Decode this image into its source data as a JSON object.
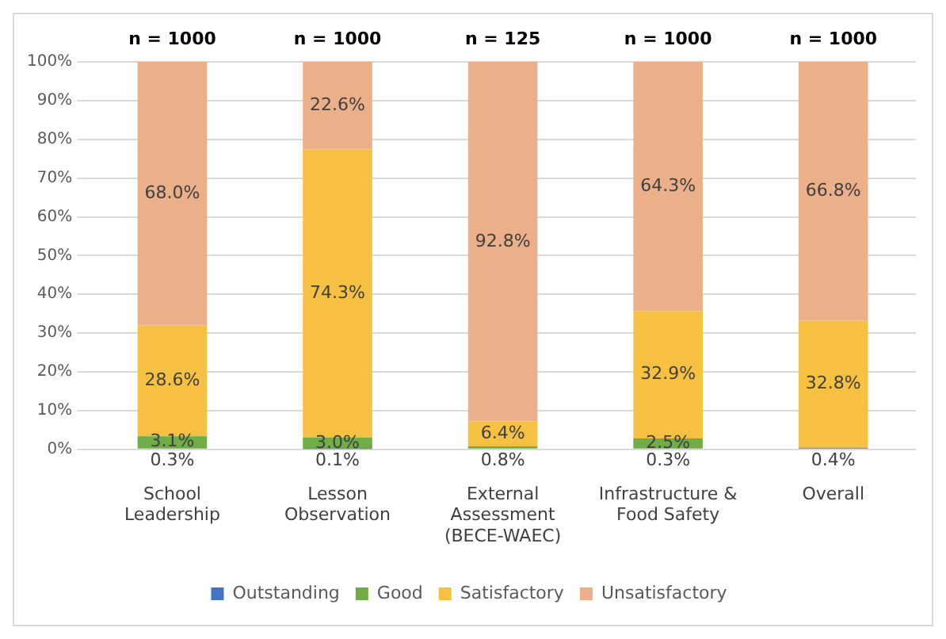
{
  "chart_data": {
    "type": "bar",
    "stacked": true,
    "categories": [
      "School Leadership",
      "Lesson Observation",
      "External Assessment (BECE-WAEC)",
      "Infrastructure & Food Safety",
      "Overall"
    ],
    "series": [
      {
        "name": "Outstanding",
        "color": "#4472c4",
        "values": [
          0.3,
          0.1,
          null,
          0.3,
          0.4
        ],
        "value_labels": [
          "0.3%",
          "0.1%",
          null,
          "0.3%",
          "0.4%"
        ]
      },
      {
        "name": "Good",
        "color": "#70ad47",
        "values": [
          3.1,
          3.0,
          0.8,
          2.5,
          null
        ],
        "value_labels": [
          "3.1%",
          "3.0%",
          "0.8%",
          "2.5%",
          null
        ]
      },
      {
        "name": "Satisfactory",
        "color": "#f6c142",
        "values": [
          28.6,
          74.3,
          6.4,
          32.9,
          32.8
        ],
        "value_labels": [
          "28.6%",
          "74.3%",
          "6.4%",
          "32.9%",
          "32.8%"
        ]
      },
      {
        "name": "Unsatisfactory",
        "color": "#ebb08a",
        "values": [
          68.0,
          22.6,
          92.8,
          64.3,
          66.8
        ],
        "value_labels": [
          "68.0%",
          "22.6%",
          "92.8%",
          "64.3%",
          "66.8%"
        ]
      }
    ],
    "annotations": [
      "n = 1000",
      "n = 1000",
      "n = 125",
      "n = 1000",
      "n = 1000"
    ],
    "ylim": [
      0,
      100
    ],
    "yticks": [
      {
        "value": 0,
        "label": "0%"
      },
      {
        "value": 10,
        "label": "10%"
      },
      {
        "value": 20,
        "label": "20%"
      },
      {
        "value": 30,
        "label": "30%"
      },
      {
        "value": 40,
        "label": "40%"
      },
      {
        "value": 50,
        "label": "50%"
      },
      {
        "value": 60,
        "label": "60%"
      },
      {
        "value": 70,
        "label": "70%"
      },
      {
        "value": 80,
        "label": "80%"
      },
      {
        "value": 90,
        "label": "90%"
      },
      {
        "value": 100,
        "label": "100%"
      }
    ],
    "grid": "y",
    "legend": "bottom"
  }
}
